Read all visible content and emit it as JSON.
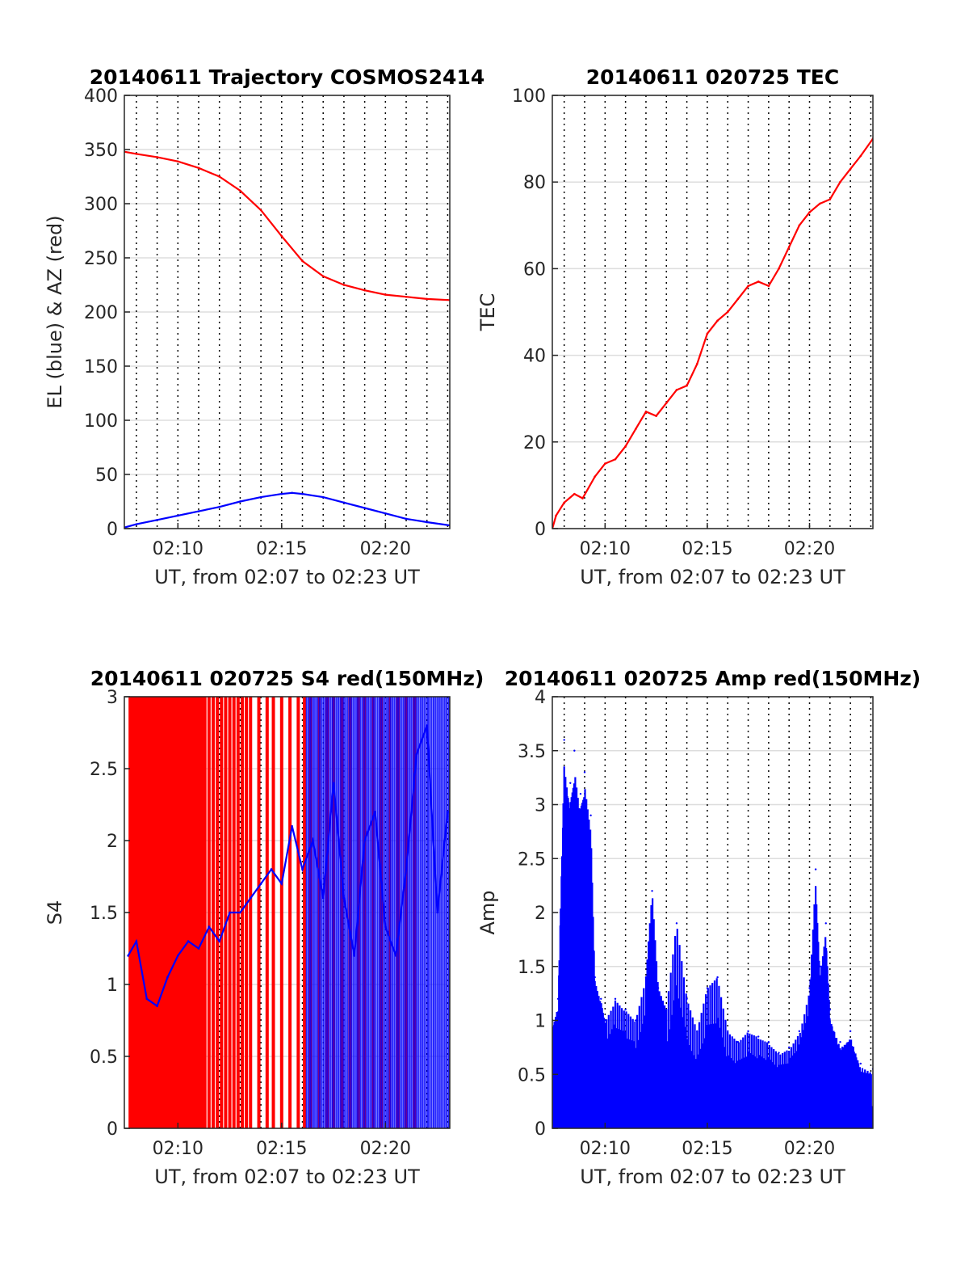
{
  "figure": {
    "x_ticks": [
      "02:10",
      "02:15",
      "02:20"
    ],
    "x_range_label": "UT, from 02:07 to 02:23 UT",
    "colors": {
      "red": "#ff0000",
      "blue": "#0000ff",
      "axis": "#262626",
      "grid": "#dddddd"
    }
  },
  "chart_data": [
    {
      "type": "line",
      "title": "20140611 Trajectory COSMOS2414",
      "xlabel": "UT, from 02:07 to 02:23 UT",
      "ylabel": "EL (blue) & AZ (red)",
      "x_unit": "minutes after 02:00 UT",
      "xlim": [
        7.42,
        23.1
      ],
      "ylim": [
        0,
        400
      ],
      "yticks": [
        0,
        50,
        100,
        150,
        200,
        250,
        300,
        350,
        400
      ],
      "xticks": [
        "02:10",
        "02:15",
        "02:20"
      ],
      "grid": "on (dotted vertical minor lines every minute)",
      "series": [
        {
          "color": "#ff0000",
          "x": [
            7.42,
            8,
            9,
            10,
            11,
            12,
            13,
            14,
            15,
            16,
            17,
            18,
            19,
            20,
            21,
            22,
            23.1
          ],
          "y": [
            348,
            346,
            343,
            339,
            333,
            325,
            312,
            294,
            270,
            247,
            233,
            225,
            220,
            216,
            214,
            212,
            211
          ]
        },
        {
          "color": "#0000ff",
          "x": [
            7.42,
            8,
            9,
            10,
            11,
            12,
            13,
            14,
            15,
            15.5,
            16,
            17,
            18,
            19,
            20,
            21,
            22,
            23.1
          ],
          "y": [
            1,
            4,
            8,
            12,
            16,
            20,
            25,
            29,
            32,
            33,
            32,
            29,
            24,
            19,
            14,
            9,
            6,
            3
          ]
        }
      ]
    },
    {
      "type": "line",
      "title": "20140611 020725 TEC",
      "xlabel": "UT, from 02:07 to 02:23 UT",
      "ylabel": "TEC",
      "x_unit": "minutes after 02:00 UT",
      "xlim": [
        7.42,
        23.1
      ],
      "ylim": [
        0,
        100
      ],
      "yticks": [
        0,
        20,
        40,
        60,
        80,
        100
      ],
      "xticks": [
        "02:10",
        "02:15",
        "02:20"
      ],
      "grid": "on",
      "series": [
        {
          "color": "#ff0000",
          "x": [
            7.42,
            7.6,
            8,
            8.5,
            8.9,
            9.5,
            10,
            10.5,
            11,
            11.5,
            12,
            12.5,
            13,
            13.5,
            14,
            14.5,
            15,
            15.5,
            16,
            16.5,
            17,
            17.5,
            18,
            18.5,
            19,
            19.5,
            20,
            20.5,
            21,
            21.5,
            22,
            22.5,
            23.1
          ],
          "y": [
            0,
            3,
            6,
            8,
            7,
            12,
            15,
            16,
            19,
            23,
            27,
            26,
            29,
            32,
            33,
            38,
            45,
            48,
            50,
            53,
            56,
            57,
            56,
            60,
            65,
            70,
            73,
            75,
            76,
            80,
            83,
            86,
            90
          ]
        }
      ]
    },
    {
      "type": "line",
      "title": "20140611 020725 S4 red(150MHz)",
      "xlabel": "UT, from 02:07 to 02:23 UT",
      "ylabel": "S4",
      "x_unit": "minutes after 02:00 UT",
      "xlim": [
        7.42,
        23.1
      ],
      "ylim": [
        0,
        3
      ],
      "yticks": [
        0,
        0.5,
        1,
        1.5,
        2,
        2.5,
        3
      ],
      "xticks": [
        "02:10",
        "02:15",
        "02:20"
      ],
      "grid": "on",
      "series": [
        {
          "color": "#ff0000",
          "note": "dense vertical spikes between 0 and 3",
          "x": [
            7.7,
            7.8,
            7.9,
            8.0,
            8.1,
            8.2,
            8.3,
            8.4,
            8.5,
            8.6,
            8.7,
            8.8,
            8.9,
            9.0,
            9.1,
            9.2,
            9.3,
            9.4,
            9.5,
            9.6,
            9.7,
            9.8,
            9.9,
            10.0,
            10.1,
            10.2,
            10.3,
            10.4,
            10.5,
            10.6,
            10.7,
            10.8,
            10.9,
            11.0,
            11.1,
            11.2,
            11.3,
            11.5,
            11.7,
            11.9,
            12.1,
            12.3,
            12.5,
            12.7,
            12.9,
            13.1,
            13.3,
            13.5,
            13.9,
            14.3,
            14.6,
            15.0,
            15.4,
            15.8,
            16.1,
            16.4,
            16.8,
            17.2,
            17.5,
            17.9,
            18.3,
            18.7,
            19.0,
            19.4,
            19.8,
            20.2,
            20.6,
            21.0,
            21.4
          ],
          "y": [
            3,
            3,
            3,
            3,
            3,
            3,
            3,
            3,
            3,
            3,
            3,
            3,
            3,
            3,
            3,
            3,
            3,
            3,
            3,
            3,
            3,
            3,
            3,
            3,
            3,
            3,
            3,
            3,
            3,
            3,
            3,
            3,
            3,
            3,
            3,
            3,
            3,
            3,
            3,
            3,
            3,
            3,
            3,
            3,
            3,
            3,
            3,
            3,
            3,
            3,
            3,
            3,
            3,
            3,
            3,
            3,
            3,
            3,
            3,
            3,
            3,
            3,
            3,
            3,
            3,
            3,
            3,
            3,
            3
          ]
        },
        {
          "color": "#0000ff",
          "note": "noisy line, dense spikes to 3 after 02:16",
          "x": [
            7.6,
            8,
            8.5,
            9,
            9.5,
            10,
            10.5,
            11,
            11.5,
            12,
            12.5,
            13,
            13.5,
            14,
            14.5,
            15,
            15.5,
            16,
            16.5,
            17,
            17.5,
            18,
            18.5,
            19,
            19.5,
            20,
            20.5,
            21,
            21.5,
            22,
            22.5,
            23
          ],
          "y": [
            1.2,
            1.3,
            0.9,
            0.85,
            1.05,
            1.2,
            1.3,
            1.25,
            1.4,
            1.3,
            1.5,
            1.5,
            1.6,
            1.7,
            1.8,
            1.7,
            2.1,
            1.8,
            2.0,
            1.6,
            2.4,
            1.6,
            1.2,
            2.0,
            2.2,
            1.4,
            1.2,
            1.8,
            2.6,
            2.8,
            1.5,
            2.2
          ]
        }
      ]
    },
    {
      "type": "line",
      "title": "20140611 020725 Amp red(150MHz)",
      "xlabel": "UT, from 02:07 to 02:23 UT",
      "ylabel": "Amp",
      "x_unit": "minutes after 02:00 UT",
      "xlim": [
        7.42,
        23.1
      ],
      "ylim": [
        0,
        4
      ],
      "yticks": [
        0,
        0.5,
        1,
        1.5,
        2,
        2.5,
        3,
        3.5,
        4
      ],
      "xticks": [
        "02:10",
        "02:15",
        "02:20"
      ],
      "grid": "on",
      "series": [
        {
          "color": "#0000ff",
          "note": "upper envelope of a dense noisy amplitude trace",
          "x": [
            7.42,
            7.7,
            8.0,
            8.3,
            8.5,
            8.8,
            9.0,
            9.3,
            9.5,
            9.8,
            10.0,
            10.5,
            11.0,
            11.5,
            12.0,
            12.3,
            12.6,
            13.0,
            13.5,
            14.0,
            14.5,
            15.0,
            15.5,
            16.0,
            16.5,
            17.0,
            17.5,
            18.0,
            18.5,
            19.0,
            19.5,
            20.0,
            20.3,
            20.5,
            20.8,
            21.0,
            21.5,
            22.0,
            22.5,
            23.1
          ],
          "y": [
            1.0,
            1.2,
            3.6,
            3.2,
            3.5,
            3.1,
            3.3,
            2.9,
            1.4,
            1.2,
            1.0,
            1.2,
            1.1,
            1.0,
            1.4,
            2.2,
            1.3,
            1.1,
            1.9,
            1.2,
            0.9,
            1.3,
            1.4,
            0.9,
            0.8,
            0.9,
            0.85,
            0.8,
            0.7,
            0.75,
            0.9,
            1.3,
            2.4,
            1.5,
            1.9,
            1.1,
            0.8,
            0.9,
            0.6,
            0.55
          ]
        }
      ]
    }
  ]
}
